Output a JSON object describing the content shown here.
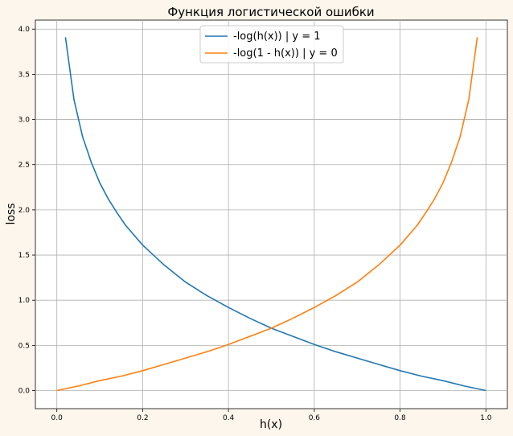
{
  "page": {
    "background": "#fdf6ec"
  },
  "chart_data": {
    "type": "line",
    "title": "Функция логистической ошибки",
    "xlabel": "h(x)",
    "ylabel": "loss",
    "xlim": [
      -0.05,
      1.05
    ],
    "ylim": [
      -0.2,
      4.1
    ],
    "xticks": [
      0.0,
      0.2,
      0.4,
      0.6,
      0.8,
      1.0
    ],
    "xtick_labels": [
      "0.0",
      "0.2",
      "0.4",
      "0.6",
      "0.8",
      "1.0"
    ],
    "yticks": [
      0.0,
      0.5,
      1.0,
      1.5,
      2.0,
      2.5,
      3.0,
      3.5,
      4.0
    ],
    "ytick_labels": [
      "0.0",
      "0.5",
      "1.0",
      "1.5",
      "2.0",
      "2.5",
      "3.0",
      "3.5",
      "4.0"
    ],
    "grid": true,
    "legend_position": "top-center",
    "series": [
      {
        "name": "-log(h(x)) | y = 1",
        "color": "#1f77b4",
        "x": [
          0.02,
          0.04,
          0.06,
          0.08,
          0.1,
          0.12,
          0.14,
          0.16,
          0.2,
          0.25,
          0.3,
          0.35,
          0.4,
          0.45,
          0.5,
          0.55,
          0.6,
          0.65,
          0.7,
          0.75,
          0.8,
          0.85,
          0.9,
          0.95,
          1.0
        ],
        "y": [
          3.91,
          3.22,
          2.81,
          2.53,
          2.3,
          2.12,
          1.97,
          1.83,
          1.61,
          1.39,
          1.2,
          1.05,
          0.92,
          0.8,
          0.69,
          0.6,
          0.51,
          0.43,
          0.36,
          0.29,
          0.22,
          0.16,
          0.11,
          0.05,
          0.0
        ]
      },
      {
        "name": "-log(1 - h(x)) | y = 0",
        "color": "#ff7f0e",
        "x": [
          0.0,
          0.05,
          0.1,
          0.15,
          0.2,
          0.25,
          0.3,
          0.35,
          0.4,
          0.45,
          0.5,
          0.55,
          0.6,
          0.65,
          0.7,
          0.75,
          0.8,
          0.84,
          0.86,
          0.88,
          0.9,
          0.92,
          0.94,
          0.96,
          0.98
        ],
        "y": [
          0.0,
          0.05,
          0.11,
          0.16,
          0.22,
          0.29,
          0.36,
          0.43,
          0.51,
          0.6,
          0.69,
          0.8,
          0.92,
          1.05,
          1.2,
          1.39,
          1.61,
          1.83,
          1.97,
          2.12,
          2.3,
          2.53,
          2.81,
          3.22,
          3.91
        ]
      }
    ]
  }
}
